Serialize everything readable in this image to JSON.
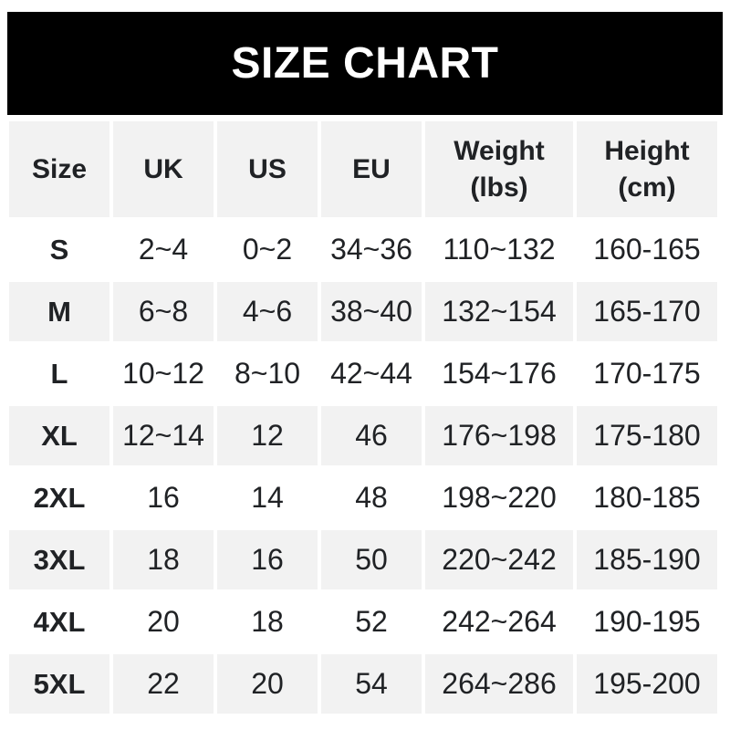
{
  "title": "SIZE CHART",
  "colors": {
    "banner_bg": "#000000",
    "banner_text": "#ffffff",
    "band_bg": "#f2f2f2",
    "text": "#202225",
    "page_bg": "#ffffff"
  },
  "chart_data": {
    "type": "table",
    "title": "SIZE CHART",
    "columns": [
      {
        "key": "size",
        "label_lines": [
          "Size"
        ]
      },
      {
        "key": "uk",
        "label_lines": [
          "UK"
        ]
      },
      {
        "key": "us",
        "label_lines": [
          "US"
        ]
      },
      {
        "key": "eu",
        "label_lines": [
          "EU"
        ]
      },
      {
        "key": "weight",
        "label_lines": [
          "Weight",
          "(lbs)"
        ]
      },
      {
        "key": "height",
        "label_lines": [
          "Height",
          "(cm)"
        ]
      }
    ],
    "rows": [
      [
        "S",
        "2~4",
        "0~2",
        "34~36",
        "110~132",
        "160-165"
      ],
      [
        "M",
        "6~8",
        "4~6",
        "38~40",
        "132~154",
        "165-170"
      ],
      [
        "L",
        "10~12",
        "8~10",
        "42~44",
        "154~176",
        "170-175"
      ],
      [
        "XL",
        "12~14",
        "12",
        "46",
        "176~198",
        "175-180"
      ],
      [
        "2XL",
        "16",
        "14",
        "48",
        "198~220",
        "180-185"
      ],
      [
        "3XL",
        "18",
        "16",
        "50",
        "220~242",
        "185-190"
      ],
      [
        "4XL",
        "20",
        "18",
        "52",
        "242~264",
        "190-195"
      ],
      [
        "5XL",
        "22",
        "20",
        "54",
        "264~286",
        "195-200"
      ]
    ],
    "layout": {
      "striped": true,
      "gray_rows": [
        1,
        3,
        5,
        7
      ],
      "header_band": true,
      "grid": "white-gaps-between-cells"
    }
  }
}
